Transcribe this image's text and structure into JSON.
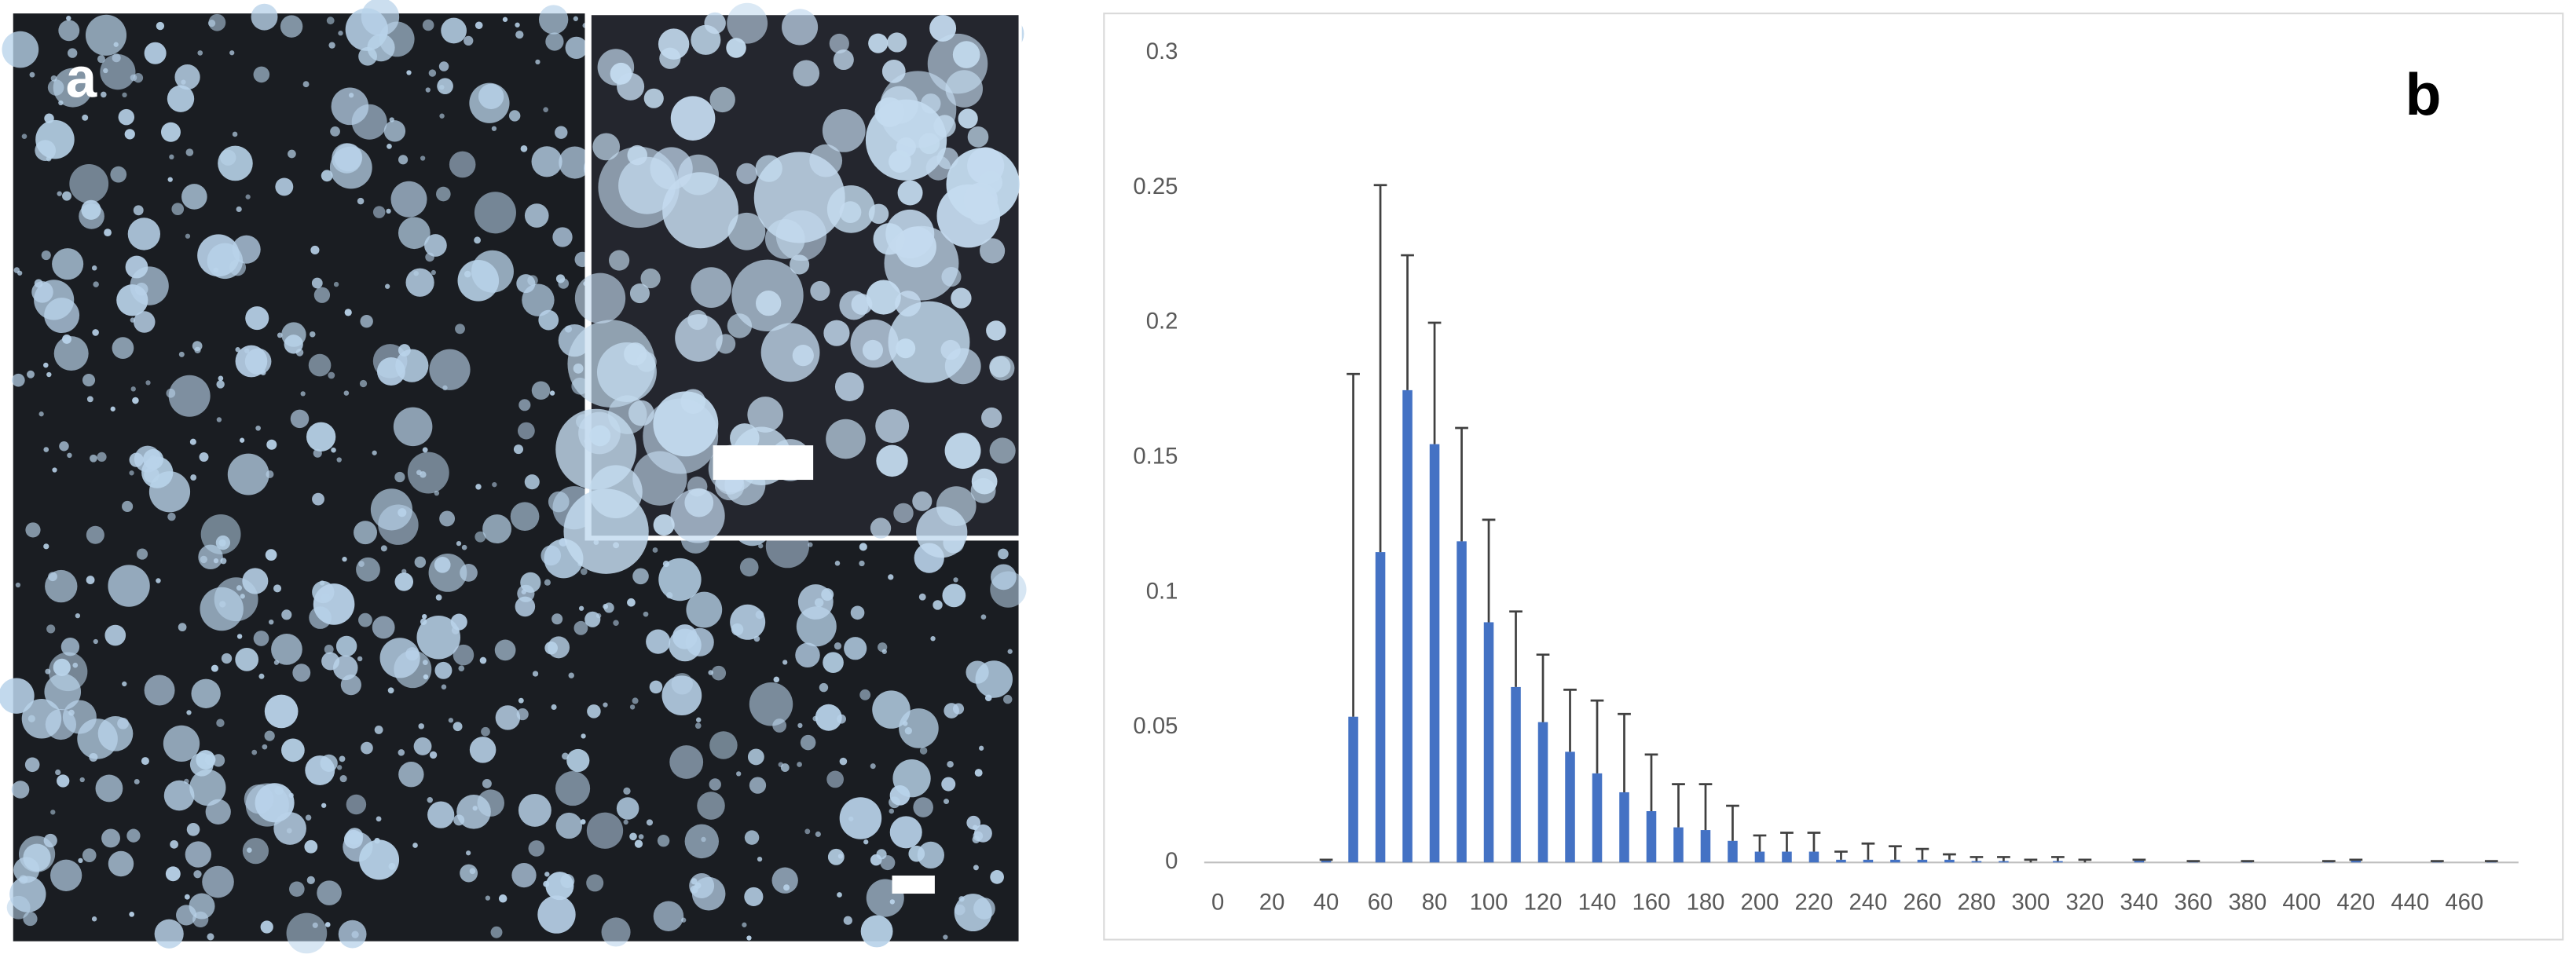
{
  "photo_panel": {
    "label": "a"
  },
  "chart_data": {
    "type": "bar",
    "label": "b",
    "color": "#4472c4",
    "error_color": "#404040",
    "x": [
      0,
      10,
      20,
      30,
      40,
      50,
      60,
      70,
      80,
      90,
      100,
      110,
      120,
      130,
      140,
      150,
      160,
      170,
      180,
      190,
      200,
      210,
      220,
      230,
      240,
      250,
      260,
      270,
      280,
      290,
      300,
      310,
      320,
      330,
      340,
      350,
      360,
      370,
      380,
      390,
      400,
      410,
      420,
      430,
      440,
      450,
      460,
      470
    ],
    "values": [
      0,
      0,
      0,
      0,
      0.001,
      0.054,
      0.115,
      0.175,
      0.155,
      0.119,
      0.089,
      0.065,
      0.052,
      0.041,
      0.033,
      0.026,
      0.019,
      0.013,
      0.012,
      0.008,
      0.004,
      0.004,
      0.004,
      0.001,
      0.001,
      0.001,
      0.001,
      0.001,
      0.0005,
      0.0005,
      0,
      0.0005,
      0,
      0,
      0.001,
      0,
      0.0005,
      0,
      0.0005,
      0,
      0,
      0.0005,
      0.001,
      0,
      0,
      0.0005,
      0,
      0.0005
    ],
    "errors": [
      null,
      null,
      null,
      null,
      0,
      0.127,
      0.136,
      0.05,
      0.045,
      0.042,
      0.038,
      0.028,
      0.025,
      0.023,
      0.027,
      0.029,
      0.021,
      0.016,
      0.017,
      0.013,
      0.006,
      0.007,
      0.007,
      0.003,
      0.006,
      0.005,
      0.004,
      0.002,
      0.0015,
      0.0015,
      0.001,
      0.0015,
      0.001,
      null,
      0,
      null,
      0,
      null,
      0,
      null,
      null,
      0,
      0,
      null,
      null,
      0,
      null,
      0
    ],
    "xlim": [
      -5,
      480
    ],
    "xticks": [
      0,
      20,
      40,
      60,
      80,
      100,
      120,
      140,
      160,
      180,
      200,
      220,
      240,
      260,
      280,
      300,
      320,
      340,
      360,
      380,
      400,
      420,
      440,
      460
    ],
    "ylim": [
      0,
      0.3
    ],
    "yticks": [
      0,
      0.05,
      0.1,
      0.15,
      0.2,
      0.25,
      0.3
    ],
    "grid": false
  }
}
